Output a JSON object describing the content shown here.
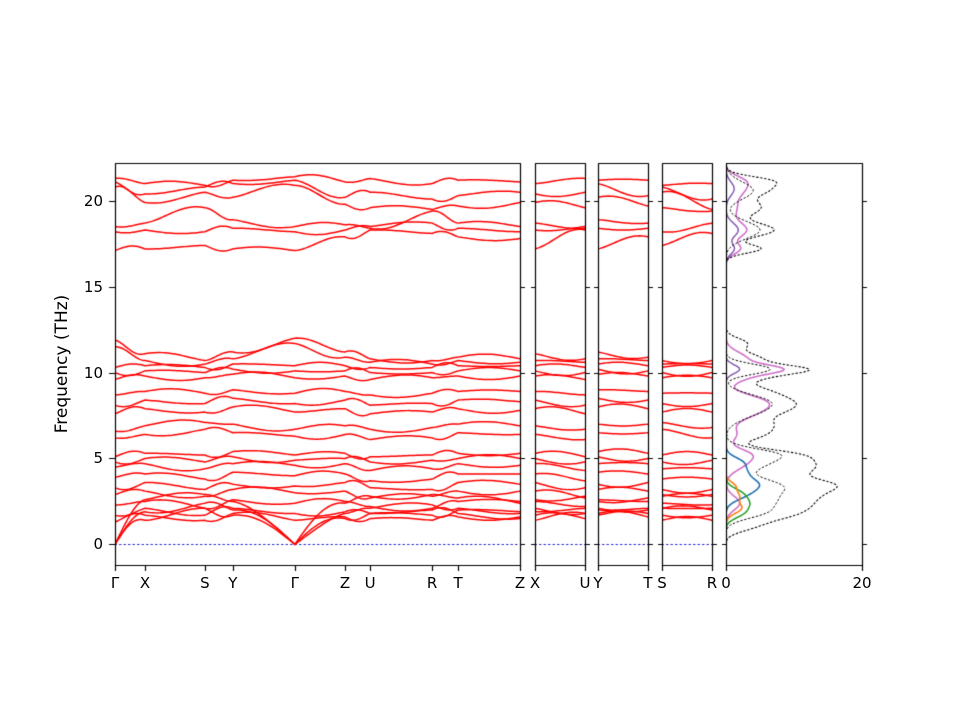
{
  "figure": {
    "ylabel": "Frequency (THz)",
    "background": "#ffffff",
    "frame_color": "#000000",
    "band_color": "#ff0000",
    "zero_line_color": "#2222cc",
    "yticks": [
      0,
      5,
      10,
      15,
      20
    ],
    "ylim": [
      -1.2,
      22.2
    ]
  },
  "chart_data": {
    "type": "line",
    "frequency_unit": "THz",
    "band_panels": [
      {
        "name": "main-path",
        "kpath": [
          "Γ",
          "X",
          "S",
          "Y",
          "Γ",
          "Z",
          "U",
          "R",
          "T",
          "Z"
        ],
        "positions": [
          0,
          0.074,
          0.222,
          0.291,
          0.444,
          0.568,
          0.63,
          0.783,
          0.847,
          1
        ],
        "bands": [
          [
            0,
            1.4,
            2.1,
            1.7,
            0,
            1.5,
            1.8,
            2.0,
            1.8,
            1.5
          ],
          [
            0,
            1.9,
            2.4,
            2.0,
            0,
            1.8,
            2.1,
            2.3,
            2.1,
            1.8
          ],
          [
            0,
            2.6,
            2.9,
            2.5,
            0,
            2.4,
            2.8,
            2.9,
            2.7,
            2.4
          ],
          [
            1.3,
            1.7,
            1.4,
            1.8,
            1.4,
            1.6,
            1.5,
            1.4,
            1.6,
            1.6
          ],
          [
            1.7,
            2.1,
            1.7,
            2.1,
            1.8,
            1.9,
            1.8,
            1.7,
            2.0,
            1.9
          ],
          [
            2.3,
            2.5,
            2.1,
            2.6,
            2.4,
            2.5,
            2.2,
            2.1,
            2.5,
            2.5
          ],
          [
            2.9,
            3.1,
            2.8,
            3.2,
            3.0,
            3.1,
            2.7,
            2.8,
            3.1,
            3.1
          ],
          [
            3.3,
            3.6,
            3.2,
            3.5,
            3.4,
            3.6,
            3.3,
            3.2,
            3.6,
            3.5
          ],
          [
            3.9,
            4.1,
            3.8,
            4.2,
            4.0,
            4.1,
            3.7,
            3.8,
            4.1,
            4.1
          ],
          [
            4.5,
            4.7,
            4.4,
            4.7,
            4.6,
            4.7,
            4.3,
            4.4,
            4.7,
            4.6
          ],
          [
            4.8,
            5.0,
            4.8,
            5.1,
            4.9,
            5.0,
            4.8,
            4.9,
            5.0,
            5.0
          ],
          [
            5.1,
            5.3,
            5.2,
            5.4,
            5.2,
            5.3,
            5.1,
            5.2,
            5.3,
            5.3
          ],
          [
            6.2,
            6.4,
            6.7,
            6.5,
            6.3,
            6.4,
            6.1,
            6.2,
            6.5,
            6.4
          ],
          [
            6.6,
            6.9,
            7.1,
            7.0,
            6.7,
            6.9,
            6.7,
            6.8,
            7.0,
            6.9
          ],
          [
            7.6,
            7.9,
            7.7,
            8.0,
            7.7,
            7.9,
            7.6,
            7.7,
            7.9,
            7.8
          ],
          [
            8.1,
            8.4,
            8.2,
            8.5,
            8.2,
            8.4,
            8.1,
            8.2,
            8.4,
            8.3
          ],
          [
            8.7,
            8.9,
            8.8,
            9.0,
            8.8,
            8.9,
            8.7,
            8.8,
            8.9,
            8.9
          ],
          [
            9.6,
            9.8,
            9.7,
            9.9,
            9.7,
            9.8,
            9.6,
            9.7,
            9.8,
            9.8
          ],
          [
            10.0,
            10.1,
            10.0,
            10.2,
            10.1,
            10.1,
            10.0,
            10.0,
            10.1,
            10.1
          ],
          [
            10.3,
            10.4,
            10.3,
            10.5,
            10.4,
            10.4,
            10.3,
            10.3,
            10.4,
            10.4
          ],
          [
            11.5,
            10.7,
            10.5,
            10.8,
            11.7,
            10.9,
            10.6,
            10.5,
            10.7,
            10.6
          ],
          [
            11.9,
            11.1,
            10.7,
            11.2,
            12.0,
            11.2,
            10.8,
            10.7,
            10.9,
            10.8
          ],
          [
            17.1,
            17.2,
            17.4,
            17.2,
            17.1,
            17.9,
            18.3,
            18.1,
            17.9,
            17.8
          ],
          [
            18.2,
            18.3,
            18.2,
            18.4,
            18.2,
            18.3,
            18.5,
            18.7,
            18.4,
            18.2
          ],
          [
            18.5,
            18.7,
            19.6,
            18.9,
            18.5,
            18.6,
            18.4,
            19.4,
            18.7,
            18.5
          ],
          [
            20.8,
            19.9,
            20.5,
            20.2,
            20.9,
            19.8,
            19.6,
            19.5,
            19.7,
            19.9
          ],
          [
            21.1,
            20.4,
            20.8,
            21.0,
            21.2,
            20.2,
            20.5,
            20.1,
            20.3,
            20.5
          ],
          [
            21.3,
            21.0,
            20.9,
            21.2,
            21.4,
            21.1,
            21.3,
            21.0,
            21.2,
            21.1
          ]
        ]
      },
      {
        "name": "path-XU",
        "kpath": [
          "X",
          "U"
        ],
        "positions": [
          0,
          1
        ],
        "from_indices": [
          1,
          6
        ]
      },
      {
        "name": "path-YT",
        "kpath": [
          "Y",
          "T"
        ],
        "positions": [
          0,
          1
        ],
        "from_indices": [
          3,
          8
        ]
      },
      {
        "name": "path-SR",
        "kpath": [
          "S",
          "R"
        ],
        "positions": [
          0,
          1
        ],
        "from_indices": [
          2,
          7
        ]
      }
    ],
    "dos_panel": {
      "xlim": [
        0,
        20
      ],
      "xticks": [
        0,
        20
      ],
      "series": [
        {
          "name": "total-dos",
          "color": "#000000",
          "style": "dotted",
          "width": 1.1,
          "peaks": [
            [
              1.0,
              3,
              0.3
            ],
            [
              1.6,
              6,
              0.35
            ],
            [
              2.2,
              9,
              0.4
            ],
            [
              2.9,
              10,
              0.4
            ],
            [
              3.5,
              11,
              0.35
            ],
            [
              4.2,
              8,
              0.4
            ],
            [
              4.8,
              9,
              0.4
            ],
            [
              5.3,
              6,
              0.3
            ],
            [
              6.4,
              5,
              0.4
            ],
            [
              7.0,
              4,
              0.35
            ],
            [
              7.8,
              7,
              0.45
            ],
            [
              8.4,
              6,
              0.4
            ],
            [
              9.0,
              4,
              0.35
            ],
            [
              9.8,
              5,
              0.3
            ],
            [
              10.2,
              9,
              0.25
            ],
            [
              10.8,
              5,
              0.35
            ],
            [
              11.7,
              3,
              0.3
            ],
            [
              17.2,
              5,
              0.25
            ],
            [
              18.3,
              7,
              0.4
            ],
            [
              19.6,
              5,
              0.45
            ],
            [
              20.7,
              6,
              0.4
            ],
            [
              21.2,
              4,
              0.25
            ]
          ]
        },
        {
          "name": "partial-sum-dos",
          "color": "#000000",
          "style": "dotted",
          "width": 1.0,
          "peaks": [
            [
              1.8,
              4,
              0.35
            ],
            [
              2.5,
              6,
              0.45
            ],
            [
              3.4,
              7.5,
              0.45
            ],
            [
              4.8,
              6,
              0.5
            ],
            [
              5.3,
              4,
              0.3
            ],
            [
              7.8,
              4.5,
              0.5
            ],
            [
              8.4,
              4,
              0.4
            ],
            [
              10.2,
              6.5,
              0.3
            ],
            [
              18.3,
              5,
              0.5
            ],
            [
              20.6,
              4,
              0.5
            ]
          ]
        },
        {
          "name": "pdos-magenta",
          "color": "#cf6fc9",
          "style": "solid",
          "width": 1.6,
          "peaks": [
            [
              2.4,
              2,
              0.4
            ],
            [
              4.8,
              3,
              0.45
            ],
            [
              5.3,
              2,
              0.3
            ],
            [
              6.4,
              1.5,
              0.4
            ],
            [
              7.8,
              4.5,
              0.5
            ],
            [
              8.4,
              3.5,
              0.4
            ],
            [
              9.8,
              3,
              0.35
            ],
            [
              10.2,
              6,
              0.25
            ],
            [
              10.8,
              3,
              0.4
            ],
            [
              17.2,
              2,
              0.3
            ],
            [
              18.3,
              3,
              0.45
            ],
            [
              19.6,
              1.5,
              0.5
            ],
            [
              20.7,
              2.5,
              0.45
            ],
            [
              21.2,
              1.5,
              0.3
            ]
          ]
        },
        {
          "name": "pdos-blue",
          "color": "#1f6fb4",
          "style": "solid",
          "width": 1.6,
          "peaks": [
            [
              2.9,
              2.5,
              0.35
            ],
            [
              3.5,
              4,
              0.35
            ],
            [
              4.2,
              2.5,
              0.35
            ],
            [
              4.8,
              2,
              0.3
            ]
          ]
        },
        {
          "name": "pdos-green",
          "color": "#2ca02c",
          "style": "solid",
          "width": 1.6,
          "peaks": [
            [
              1.8,
              2,
              0.3
            ],
            [
              2.4,
              3,
              0.35
            ],
            [
              3.0,
              1.8,
              0.3
            ]
          ]
        },
        {
          "name": "pdos-orange",
          "color": "#ff7f0e",
          "style": "solid",
          "width": 1.6,
          "peaks": [
            [
              2.1,
              2.2,
              0.3
            ],
            [
              2.8,
              1.8,
              0.3
            ],
            [
              3.4,
              1.2,
              0.25
            ]
          ]
        },
        {
          "name": "pdos-purple",
          "color": "#7b52ab",
          "style": "solid",
          "width": 1.4,
          "peaks": [
            [
              10.2,
              2,
              0.25
            ],
            [
              17.2,
              1.2,
              0.3
            ],
            [
              18.3,
              1.8,
              0.4
            ],
            [
              20.7,
              1.2,
              0.4
            ]
          ]
        }
      ]
    }
  }
}
